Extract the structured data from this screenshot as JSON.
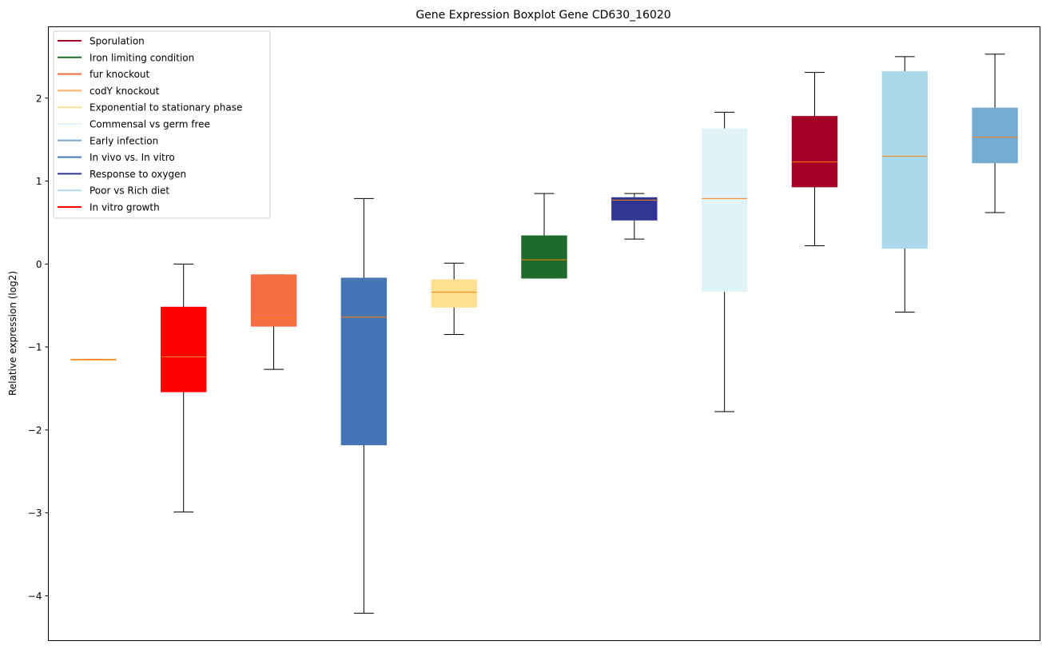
{
  "chart_data": {
    "type": "box",
    "title": "Gene Expression Boxplot Gene CD630_16020",
    "xlabel": "",
    "ylabel": "Relative expression (log2)",
    "ylim": [
      -4.54,
      2.86
    ],
    "xlim": [
      0.5,
      11.5
    ],
    "yticks": [
      -4,
      -3,
      -2,
      -1,
      0,
      1,
      2
    ],
    "ytick_labels": [
      "−4",
      "−3",
      "−2",
      "−1",
      "0",
      "1",
      "2"
    ],
    "grid": false,
    "legend_position": "top-left",
    "legend": [
      {
        "label": "Sporulation",
        "color": "#a50026"
      },
      {
        "label": "Iron limiting condition",
        "color": "#1f6b2b"
      },
      {
        "label": "fur knockout",
        "color": "#f46d43"
      },
      {
        "label": "codY knockout",
        "color": "#fdae61"
      },
      {
        "label": "Exponential to stationary phase",
        "color": "#fee090"
      },
      {
        "label": "Commensal vs germ free",
        "color": "#e0f3f8"
      },
      {
        "label": "Early infection",
        "color": "#74add1"
      },
      {
        "label": "In vivo vs. In vitro",
        "color": "#4575b4"
      },
      {
        "label": "Response to oxygen",
        "color": "#313695"
      },
      {
        "label": "Poor vs Rich diet",
        "color": "#abd9e9"
      },
      {
        "label": "In vitro growth",
        "color": "#ff0000"
      }
    ],
    "series": [
      {
        "name": "codY knockout",
        "color": "#fdae61",
        "whislo": -1.15,
        "q1": -1.15,
        "med": -1.15,
        "q3": -1.15,
        "whishi": -1.15
      },
      {
        "name": "In vitro growth",
        "color": "#ff0000",
        "whislo": -2.99,
        "q1": -1.54,
        "med": -1.12,
        "q3": -0.52,
        "whishi": 0.0
      },
      {
        "name": "fur knockout",
        "color": "#f46d43",
        "whislo": -1.27,
        "q1": -0.75,
        "med": -0.65,
        "q3": -0.13,
        "whishi": -0.13
      },
      {
        "name": "In vivo vs. In vitro",
        "color": "#4575b4",
        "whislo": -4.21,
        "q1": -2.18,
        "med": -0.64,
        "q3": -0.17,
        "whishi": 0.79
      },
      {
        "name": "Exponential to stationary phase",
        "color": "#fee090",
        "whislo": -0.85,
        "q1": -0.52,
        "med": -0.34,
        "q3": -0.19,
        "whishi": 0.01
      },
      {
        "name": "Iron limiting condition",
        "color": "#1f6b2b",
        "whislo": -0.17,
        "q1": -0.17,
        "med": 0.05,
        "q3": 0.34,
        "whishi": 0.85
      },
      {
        "name": "Response to oxygen",
        "color": "#313695",
        "whislo": 0.3,
        "q1": 0.53,
        "med": 0.77,
        "q3": 0.8,
        "whishi": 0.85
      },
      {
        "name": "Commensal vs germ free",
        "color": "#e0f3f8",
        "whislo": -1.78,
        "q1": -0.33,
        "med": 0.79,
        "q3": 1.63,
        "whishi": 1.83
      },
      {
        "name": "Sporulation",
        "color": "#a50026",
        "whislo": 0.22,
        "q1": 0.93,
        "med": 1.23,
        "q3": 1.78,
        "whishi": 2.31
      },
      {
        "name": "Poor vs Rich diet",
        "color": "#abd9e9",
        "whislo": -0.58,
        "q1": 0.19,
        "med": 1.3,
        "q3": 2.32,
        "whishi": 2.5
      },
      {
        "name": "Early infection",
        "color": "#74add1",
        "whislo": 0.62,
        "q1": 1.22,
        "med": 1.53,
        "q3": 1.88,
        "whishi": 2.53
      }
    ],
    "median_color": "#ff7f0e"
  }
}
